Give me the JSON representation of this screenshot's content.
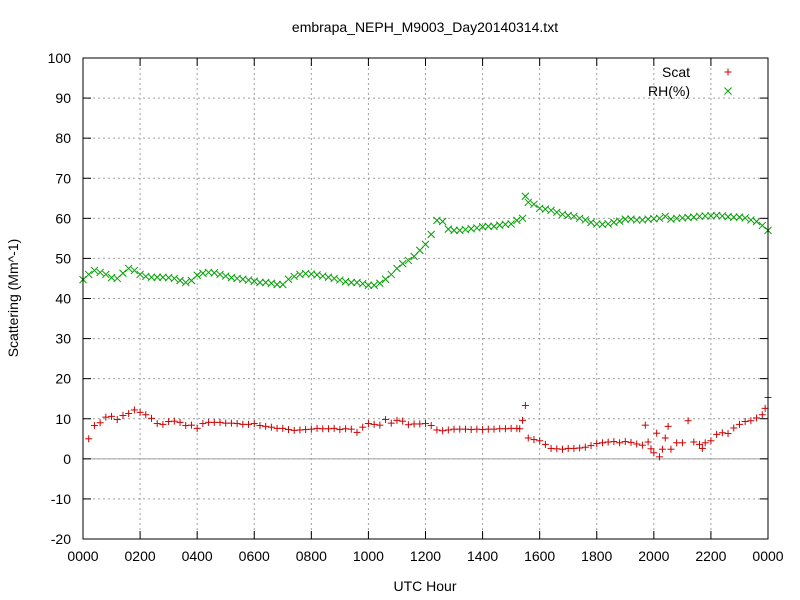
{
  "chart_data": {
    "type": "scatter",
    "title": "embrapa_NEPH_M9003_Day20140314.txt",
    "xlabel": "UTC Hour",
    "ylabel": "Scattering (Mm^-1)",
    "xlim": [
      0,
      24
    ],
    "ylim": [
      -20,
      100
    ],
    "x_ticks": [
      0,
      2,
      4,
      6,
      8,
      10,
      12,
      14,
      16,
      18,
      20,
      22,
      24
    ],
    "x_tick_labels": [
      "0000",
      "0200",
      "0400",
      "0600",
      "0800",
      "1000",
      "1200",
      "1400",
      "1600",
      "1800",
      "2000",
      "2200",
      "0000"
    ],
    "y_ticks": [
      -20,
      -10,
      0,
      10,
      20,
      30,
      40,
      50,
      60,
      70,
      80,
      90,
      100
    ],
    "y_tick_labels": [
      "-20",
      "-10",
      "0",
      "10",
      "20",
      "30",
      "40",
      "50",
      "60",
      "70",
      "80",
      "90",
      "100"
    ],
    "grid": true,
    "zero_line": true,
    "legend_position": "top-right",
    "series": [
      {
        "name": "Scat",
        "marker": "plus",
        "color": "#cc0000",
        "points": [
          [
            0.2,
            5.0
          ],
          [
            0.4,
            8.3
          ],
          [
            0.6,
            9.0
          ],
          [
            0.8,
            10.4
          ],
          [
            1.0,
            10.6
          ],
          [
            1.2,
            9.8
          ],
          [
            1.4,
            10.8
          ],
          [
            1.6,
            11.3
          ],
          [
            1.8,
            12.2
          ],
          [
            2.0,
            11.6
          ],
          [
            2.2,
            11.0
          ],
          [
            2.4,
            10.1
          ],
          [
            2.6,
            8.8
          ],
          [
            2.8,
            8.6
          ],
          [
            3.0,
            9.3
          ],
          [
            3.2,
            9.4
          ],
          [
            3.4,
            9.1
          ],
          [
            3.6,
            8.3
          ],
          [
            3.8,
            8.4
          ],
          [
            4.0,
            7.6
          ],
          [
            4.2,
            8.8
          ],
          [
            4.4,
            9.1
          ],
          [
            4.6,
            9.1
          ],
          [
            4.8,
            9.1
          ],
          [
            5.0,
            8.9
          ],
          [
            5.2,
            8.9
          ],
          [
            5.4,
            8.8
          ],
          [
            5.6,
            8.6
          ],
          [
            5.8,
            8.6
          ],
          [
            6.0,
            8.8
          ],
          [
            6.2,
            8.3
          ],
          [
            6.4,
            8.1
          ],
          [
            6.6,
            7.9
          ],
          [
            6.8,
            7.6
          ],
          [
            7.0,
            7.6
          ],
          [
            7.2,
            7.3
          ],
          [
            7.4,
            7.1
          ],
          [
            7.6,
            7.2
          ],
          [
            7.8,
            7.3
          ],
          [
            8.0,
            7.4
          ],
          [
            8.2,
            7.6
          ],
          [
            8.4,
            7.5
          ],
          [
            8.6,
            7.5
          ],
          [
            8.8,
            7.6
          ],
          [
            9.0,
            7.3
          ],
          [
            9.2,
            7.5
          ],
          [
            9.4,
            7.4
          ],
          [
            9.6,
            6.6
          ],
          [
            9.8,
            7.9
          ],
          [
            10.0,
            8.8
          ],
          [
            10.2,
            8.6
          ],
          [
            10.4,
            8.4
          ],
          [
            10.6,
            9.8
          ],
          [
            10.8,
            8.9
          ],
          [
            11.0,
            9.6
          ],
          [
            11.2,
            9.4
          ],
          [
            11.4,
            8.5
          ],
          [
            11.6,
            8.7
          ],
          [
            11.8,
            8.7
          ],
          [
            12.0,
            8.8
          ],
          [
            12.2,
            8.3
          ],
          [
            12.4,
            7.2
          ],
          [
            12.6,
            7.0
          ],
          [
            12.8,
            7.2
          ],
          [
            13.0,
            7.4
          ],
          [
            13.2,
            7.4
          ],
          [
            13.4,
            7.4
          ],
          [
            13.6,
            7.3
          ],
          [
            13.8,
            7.4
          ],
          [
            14.0,
            7.3
          ],
          [
            14.2,
            7.4
          ],
          [
            14.4,
            7.4
          ],
          [
            14.6,
            7.5
          ],
          [
            14.8,
            7.5
          ],
          [
            15.0,
            7.6
          ],
          [
            15.2,
            7.6
          ],
          [
            15.3,
            7.5
          ],
          [
            15.4,
            9.6
          ],
          [
            15.5,
            13.3
          ],
          [
            15.6,
            5.2
          ],
          [
            15.8,
            4.8
          ],
          [
            16.0,
            4.5
          ],
          [
            16.2,
            3.6
          ],
          [
            16.4,
            2.6
          ],
          [
            16.6,
            2.5
          ],
          [
            16.8,
            2.4
          ],
          [
            17.0,
            2.6
          ],
          [
            17.2,
            2.6
          ],
          [
            17.4,
            2.7
          ],
          [
            17.6,
            2.9
          ],
          [
            17.8,
            3.3
          ],
          [
            18.0,
            3.8
          ],
          [
            18.2,
            4.0
          ],
          [
            18.4,
            4.2
          ],
          [
            18.6,
            4.3
          ],
          [
            18.8,
            4.0
          ],
          [
            19.0,
            4.3
          ],
          [
            19.2,
            4.1
          ],
          [
            19.4,
            3.7
          ],
          [
            19.6,
            3.4
          ],
          [
            19.7,
            8.4
          ],
          [
            19.8,
            4.2
          ],
          [
            19.9,
            2.5
          ],
          [
            20.0,
            1.5
          ],
          [
            20.1,
            6.4
          ],
          [
            20.2,
            0.5
          ],
          [
            20.3,
            2.4
          ],
          [
            20.4,
            5.2
          ],
          [
            20.5,
            8.1
          ],
          [
            20.6,
            2.4
          ],
          [
            20.8,
            4.0
          ],
          [
            21.0,
            4.0
          ],
          [
            21.2,
            9.5
          ],
          [
            21.4,
            4.2
          ],
          [
            21.6,
            3.6
          ],
          [
            21.7,
            2.6
          ],
          [
            21.8,
            4.0
          ],
          [
            22.0,
            4.5
          ],
          [
            22.2,
            6.1
          ],
          [
            22.4,
            6.5
          ],
          [
            22.6,
            6.3
          ],
          [
            22.8,
            7.7
          ],
          [
            23.0,
            8.6
          ],
          [
            23.2,
            9.3
          ],
          [
            23.4,
            9.5
          ],
          [
            23.6,
            10.2
          ],
          [
            23.8,
            11.0
          ],
          [
            23.9,
            12.6
          ],
          [
            24.0,
            15.3
          ]
        ]
      },
      {
        "name": "RH(%)",
        "marker": "cross",
        "color": "#00a000",
        "points": [
          [
            0.0,
            44.7
          ],
          [
            0.2,
            46.0
          ],
          [
            0.4,
            47.0
          ],
          [
            0.6,
            46.5
          ],
          [
            0.8,
            46.0
          ],
          [
            1.0,
            45.2
          ],
          [
            1.2,
            45.0
          ],
          [
            1.4,
            46.3
          ],
          [
            1.6,
            47.5
          ],
          [
            1.8,
            47.0
          ],
          [
            2.0,
            46.0
          ],
          [
            2.2,
            45.5
          ],
          [
            2.4,
            45.3
          ],
          [
            2.6,
            45.3
          ],
          [
            2.8,
            45.3
          ],
          [
            3.0,
            45.2
          ],
          [
            3.2,
            45.0
          ],
          [
            3.4,
            44.5
          ],
          [
            3.6,
            44.0
          ],
          [
            3.8,
            44.5
          ],
          [
            4.0,
            45.8
          ],
          [
            4.2,
            46.3
          ],
          [
            4.4,
            46.5
          ],
          [
            4.6,
            46.4
          ],
          [
            4.8,
            46.0
          ],
          [
            5.0,
            45.6
          ],
          [
            5.2,
            45.2
          ],
          [
            5.4,
            45.0
          ],
          [
            5.6,
            44.8
          ],
          [
            5.8,
            44.6
          ],
          [
            6.0,
            44.3
          ],
          [
            6.2,
            44.0
          ],
          [
            6.4,
            44.0
          ],
          [
            6.6,
            43.8
          ],
          [
            6.8,
            43.5
          ],
          [
            7.0,
            43.5
          ],
          [
            7.2,
            44.8
          ],
          [
            7.4,
            45.5
          ],
          [
            7.6,
            46.0
          ],
          [
            7.8,
            46.2
          ],
          [
            8.0,
            46.1
          ],
          [
            8.2,
            45.9
          ],
          [
            8.4,
            45.6
          ],
          [
            8.6,
            45.3
          ],
          [
            8.8,
            45.0
          ],
          [
            9.0,
            44.6
          ],
          [
            9.2,
            44.2
          ],
          [
            9.4,
            44.0
          ],
          [
            9.6,
            44.0
          ],
          [
            9.8,
            43.7
          ],
          [
            10.0,
            43.3
          ],
          [
            10.2,
            43.3
          ],
          [
            10.4,
            43.8
          ],
          [
            10.6,
            44.8
          ],
          [
            10.8,
            46.0
          ],
          [
            11.0,
            47.5
          ],
          [
            11.2,
            48.7
          ],
          [
            11.4,
            49.5
          ],
          [
            11.6,
            50.5
          ],
          [
            11.8,
            52.0
          ],
          [
            12.0,
            53.5
          ],
          [
            12.2,
            56.0
          ],
          [
            12.4,
            59.5
          ],
          [
            12.6,
            59.2
          ],
          [
            12.8,
            57.3
          ],
          [
            13.0,
            57.0
          ],
          [
            13.2,
            57.0
          ],
          [
            13.4,
            57.2
          ],
          [
            13.6,
            57.4
          ],
          [
            13.8,
            57.6
          ],
          [
            14.0,
            57.9
          ],
          [
            14.2,
            58.0
          ],
          [
            14.4,
            58.0
          ],
          [
            14.6,
            58.3
          ],
          [
            14.8,
            58.5
          ],
          [
            15.0,
            58.6
          ],
          [
            15.2,
            59.5
          ],
          [
            15.4,
            60.0
          ],
          [
            15.5,
            65.5
          ],
          [
            15.6,
            64.0
          ],
          [
            15.8,
            63.5
          ],
          [
            16.0,
            62.5
          ],
          [
            16.2,
            62.3
          ],
          [
            16.4,
            62.0
          ],
          [
            16.6,
            61.5
          ],
          [
            16.8,
            61.0
          ],
          [
            17.0,
            60.7
          ],
          [
            17.2,
            60.5
          ],
          [
            17.4,
            60.0
          ],
          [
            17.6,
            59.6
          ],
          [
            17.8,
            59.0
          ],
          [
            18.0,
            58.6
          ],
          [
            18.2,
            58.5
          ],
          [
            18.4,
            58.6
          ],
          [
            18.6,
            59.0
          ],
          [
            18.8,
            59.3
          ],
          [
            19.0,
            59.8
          ],
          [
            19.2,
            59.8
          ],
          [
            19.4,
            59.6
          ],
          [
            19.6,
            59.6
          ],
          [
            19.8,
            59.8
          ],
          [
            20.0,
            59.9
          ],
          [
            20.2,
            60.0
          ],
          [
            20.4,
            60.5
          ],
          [
            20.6,
            59.8
          ],
          [
            20.8,
            60.0
          ],
          [
            21.0,
            60.1
          ],
          [
            21.2,
            60.2
          ],
          [
            21.4,
            60.3
          ],
          [
            21.6,
            60.5
          ],
          [
            21.8,
            60.6
          ],
          [
            22.0,
            60.6
          ],
          [
            22.2,
            60.7
          ],
          [
            22.4,
            60.6
          ],
          [
            22.6,
            60.4
          ],
          [
            22.8,
            60.3
          ],
          [
            23.0,
            60.3
          ],
          [
            23.2,
            60.1
          ],
          [
            23.4,
            59.6
          ],
          [
            23.6,
            59.2
          ],
          [
            23.8,
            58.2
          ],
          [
            24.0,
            57.0
          ]
        ]
      }
    ]
  }
}
